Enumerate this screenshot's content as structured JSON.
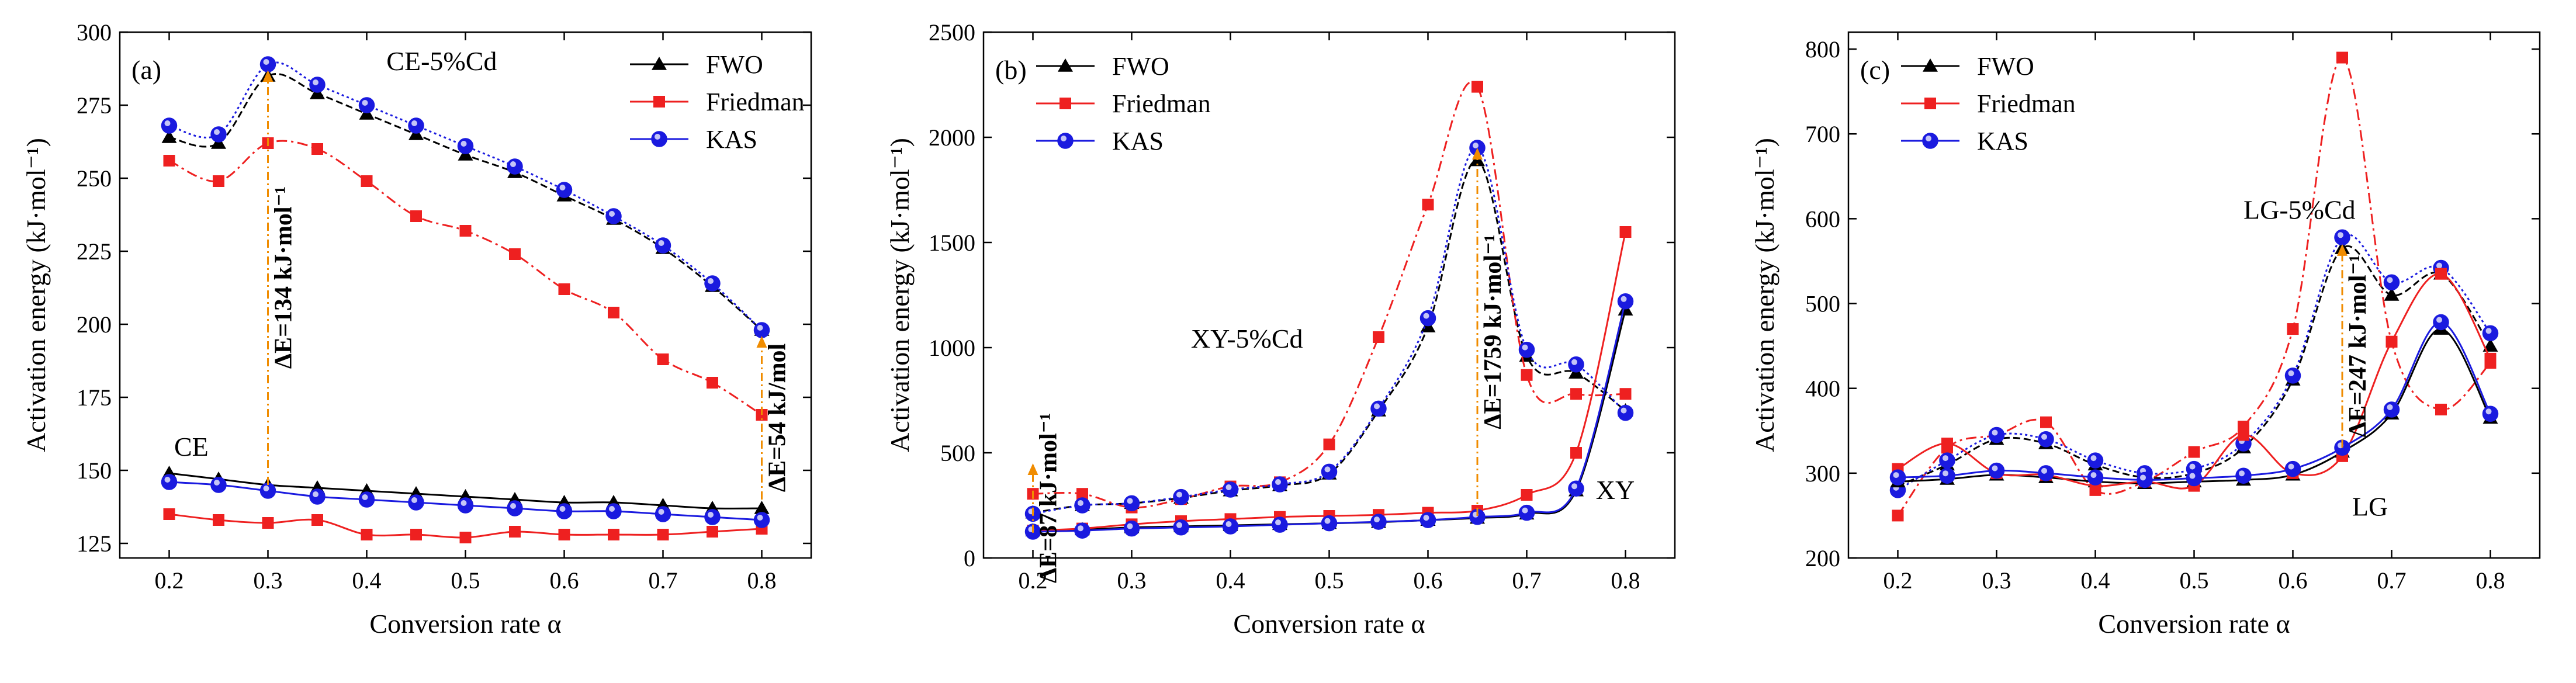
{
  "chart_data": [
    {
      "type": "line",
      "panel_label": "(a)",
      "xlabel": "Conversion rate α",
      "ylabel": "Activation energy (kJ·mol⁻¹)",
      "xlim": [
        0.15,
        0.85
      ],
      "ylim": [
        120,
        300
      ],
      "xticks": [
        0.2,
        0.3,
        0.4,
        0.5,
        0.6,
        0.7,
        0.8
      ],
      "xtick_labels": [
        "0.2",
        "0.3",
        "0.4",
        "0.5",
        "0.6",
        "0.7",
        "0.8"
      ],
      "yticks": [
        125,
        150,
        175,
        200,
        225,
        250,
        275,
        300
      ],
      "ytick_labels": [
        "125",
        "150",
        "175",
        "200",
        "225",
        "250",
        "275",
        "300"
      ],
      "legend": [
        "FWO",
        "Friedman",
        "KAS"
      ],
      "legend_position": "top-right",
      "group_labels": [
        {
          "text": "CE-5%Cd",
          "x": 0.42,
          "y": 287
        },
        {
          "text": "CE",
          "x": 0.205,
          "y": 155
        }
      ],
      "annotations": [
        {
          "text": "ΔE=134 kJ·mol⁻¹",
          "x": 0.3,
          "y_from": 145,
          "y_to": 287
        },
        {
          "text": "ΔE=54 kJ/mol",
          "x": 0.8,
          "y_from": 140,
          "y_to": 196
        }
      ],
      "x": [
        0.2,
        0.25,
        0.3,
        0.35,
        0.4,
        0.45,
        0.5,
        0.55,
        0.6,
        0.65,
        0.7,
        0.75,
        0.8
      ],
      "series": [
        {
          "name": "FWO",
          "group": "CE-5%Cd",
          "values": [
            264,
            262,
            285,
            279,
            272,
            265,
            258,
            252,
            244,
            236,
            226,
            213,
            198
          ]
        },
        {
          "name": "Friedman",
          "group": "CE-5%Cd",
          "values": [
            256,
            249,
            262,
            260,
            249,
            237,
            232,
            224,
            212,
            204,
            188,
            180,
            169
          ]
        },
        {
          "name": "KAS",
          "group": "CE-5%Cd",
          "values": [
            268,
            265,
            289,
            282,
            275,
            268,
            261,
            254,
            246,
            237,
            227,
            214,
            198
          ]
        },
        {
          "name": "FWO",
          "group": "CE",
          "values": [
            149,
            147,
            145,
            144,
            143,
            142,
            141,
            140,
            139,
            139,
            138,
            137,
            137
          ]
        },
        {
          "name": "Friedman",
          "group": "CE",
          "values": [
            135,
            133,
            132,
            133,
            128,
            128,
            127,
            129,
            128,
            128,
            128,
            129,
            130
          ]
        },
        {
          "name": "KAS",
          "group": "CE",
          "values": [
            146,
            145,
            143,
            141,
            140,
            139,
            138,
            137,
            136,
            136,
            135,
            134,
            133
          ]
        }
      ]
    },
    {
      "type": "line",
      "panel_label": "(b)",
      "xlabel": "Conversion rate α",
      "ylabel": "Activation energy (kJ·mol⁻¹)",
      "xlim": [
        0.15,
        0.85
      ],
      "ylim": [
        0,
        2500
      ],
      "xticks": [
        0.2,
        0.3,
        0.4,
        0.5,
        0.6,
        0.7,
        0.8
      ],
      "xtick_labels": [
        "0.2",
        "0.3",
        "0.4",
        "0.5",
        "0.6",
        "0.7",
        "0.8"
      ],
      "yticks": [
        0,
        500,
        1000,
        1500,
        2000,
        2500
      ],
      "ytick_labels": [
        "0",
        "500",
        "1000",
        "1500",
        "2000",
        "2500"
      ],
      "legend": [
        "FWO",
        "Friedman",
        "KAS"
      ],
      "legend_position": "top-left",
      "group_labels": [
        {
          "text": "XY-5%Cd",
          "x": 0.36,
          "y": 1000
        },
        {
          "text": "XY",
          "x": 0.77,
          "y": 280
        }
      ],
      "annotations": [
        {
          "text": "ΔE=87 kJ·mol⁻¹",
          "x": 0.2,
          "y_from": 120,
          "y_to": 450
        },
        {
          "text": "ΔE=1759 kJ·mol⁻¹",
          "x": 0.65,
          "y_from": 200,
          "y_to": 1950
        }
      ],
      "x": [
        0.2,
        0.25,
        0.3,
        0.35,
        0.4,
        0.45,
        0.5,
        0.55,
        0.6,
        0.65,
        0.7,
        0.75,
        0.8
      ],
      "series": [
        {
          "name": "FWO",
          "group": "XY-5%Cd",
          "values": [
            215,
            250,
            260,
            285,
            320,
            345,
            400,
            700,
            1100,
            1890,
            960,
            880,
            700
          ]
        },
        {
          "name": "Friedman",
          "group": "XY-5%Cd",
          "values": [
            305,
            305,
            240,
            280,
            340,
            360,
            540,
            1050,
            1680,
            2240,
            870,
            780,
            780
          ]
        },
        {
          "name": "KAS",
          "group": "XY-5%Cd",
          "values": [
            210,
            250,
            260,
            290,
            325,
            350,
            410,
            710,
            1140,
            1950,
            990,
            920,
            690
          ]
        },
        {
          "name": "FWO",
          "group": "XY",
          "values": [
            130,
            135,
            145,
            150,
            155,
            160,
            165,
            170,
            180,
            190,
            210,
            320,
            1180
          ]
        },
        {
          "name": "Friedman",
          "group": "XY",
          "values": [
            130,
            140,
            160,
            175,
            185,
            195,
            200,
            205,
            215,
            225,
            300,
            500,
            1550
          ]
        },
        {
          "name": "KAS",
          "group": "XY",
          "values": [
            125,
            130,
            140,
            145,
            150,
            158,
            165,
            172,
            180,
            195,
            215,
            330,
            1220
          ]
        }
      ]
    },
    {
      "type": "line",
      "panel_label": "(c)",
      "xlabel": "Conversion rate α",
      "ylabel": "Activation energy (kJ·mol⁻¹)",
      "xlim": [
        0.15,
        0.85
      ],
      "ylim": [
        200,
        820
      ],
      "xticks": [
        0.2,
        0.3,
        0.4,
        0.5,
        0.6,
        0.7,
        0.8
      ],
      "xtick_labels": [
        "0.2",
        "0.3",
        "0.4",
        "0.5",
        "0.6",
        "0.7",
        "0.8"
      ],
      "yticks": [
        200,
        300,
        400,
        500,
        600,
        700,
        800
      ],
      "ytick_labels": [
        "200",
        "300",
        "400",
        "500",
        "600",
        "700",
        "800"
      ],
      "legend": [
        "FWO",
        "Friedman",
        "KAS"
      ],
      "legend_position": "top-left",
      "group_labels": [
        {
          "text": "LG-5%Cd",
          "x": 0.55,
          "y": 600
        },
        {
          "text": "LG",
          "x": 0.66,
          "y": 250
        }
      ],
      "annotations": [
        {
          "text": "ΔE=247 kJ·mol⁻¹",
          "x": 0.65,
          "y_from": 330,
          "y_to": 570
        }
      ],
      "x": [
        0.2,
        0.25,
        0.3,
        0.35,
        0.4,
        0.45,
        0.5,
        0.55,
        0.6,
        0.65,
        0.7,
        0.75,
        0.8
      ],
      "series": [
        {
          "name": "FWO",
          "group": "LG-5%Cd",
          "values": [
            285,
            310,
            340,
            335,
            310,
            295,
            300,
            330,
            410,
            565,
            510,
            535,
            450
          ]
        },
        {
          "name": "Friedman",
          "group": "LG-5%Cd",
          "values": [
            250,
            330,
            345,
            360,
            280,
            290,
            325,
            355,
            470,
            790,
            455,
            375,
            430
          ]
        },
        {
          "name": "KAS",
          "group": "LG-5%Cd",
          "values": [
            280,
            315,
            345,
            340,
            315,
            300,
            305,
            335,
            415,
            578,
            525,
            542,
            465
          ]
        },
        {
          "name": "FWO",
          "group": "LG",
          "values": [
            290,
            293,
            298,
            295,
            290,
            288,
            290,
            292,
            298,
            325,
            370,
            470,
            365
          ]
        },
        {
          "name": "Friedman",
          "group": "LG",
          "values": [
            305,
            335,
            300,
            298,
            285,
            290,
            285,
            345,
            300,
            320,
            455,
            535,
            435
          ]
        },
        {
          "name": "KAS",
          "group": "LG",
          "values": [
            295,
            297,
            303,
            300,
            295,
            292,
            294,
            297,
            305,
            330,
            375,
            478,
            370
          ]
        }
      ]
    }
  ],
  "styles": {
    "FWO": {
      "color": "#000000",
      "marker": "triangle"
    },
    "Friedman": {
      "color": "#ee2020",
      "marker": "square"
    },
    "KAS": {
      "color": "#1a1adf",
      "marker": "circle"
    },
    "annotation_color": "#f08c00"
  }
}
